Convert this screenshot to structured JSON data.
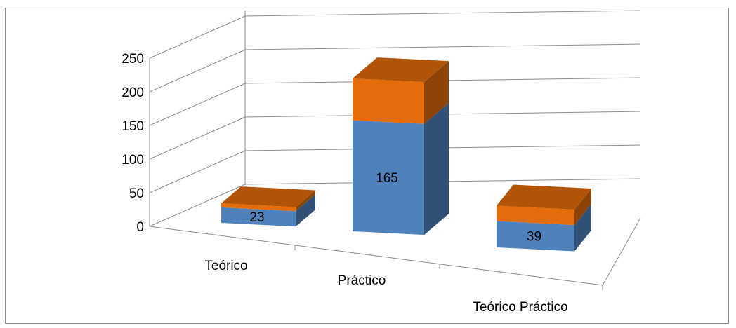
{
  "chart_data": {
    "type": "bar",
    "stacked": true,
    "three_d": true,
    "categories": [
      "Teórico",
      "Práctico",
      "Teórico Práctico"
    ],
    "series": [
      {
        "values": [
          23,
          165,
          39
        ],
        "color": "#4f81bd",
        "data_labels": [
          "23",
          "165",
          "39"
        ]
      },
      {
        "values": [
          6,
          62,
          23
        ],
        "color": "#e46c0a"
      }
    ],
    "yticks": [
      "0",
      "50",
      "100",
      "150",
      "200",
      "250"
    ],
    "ylim": [
      0,
      250
    ],
    "grid": true,
    "legend": false
  }
}
